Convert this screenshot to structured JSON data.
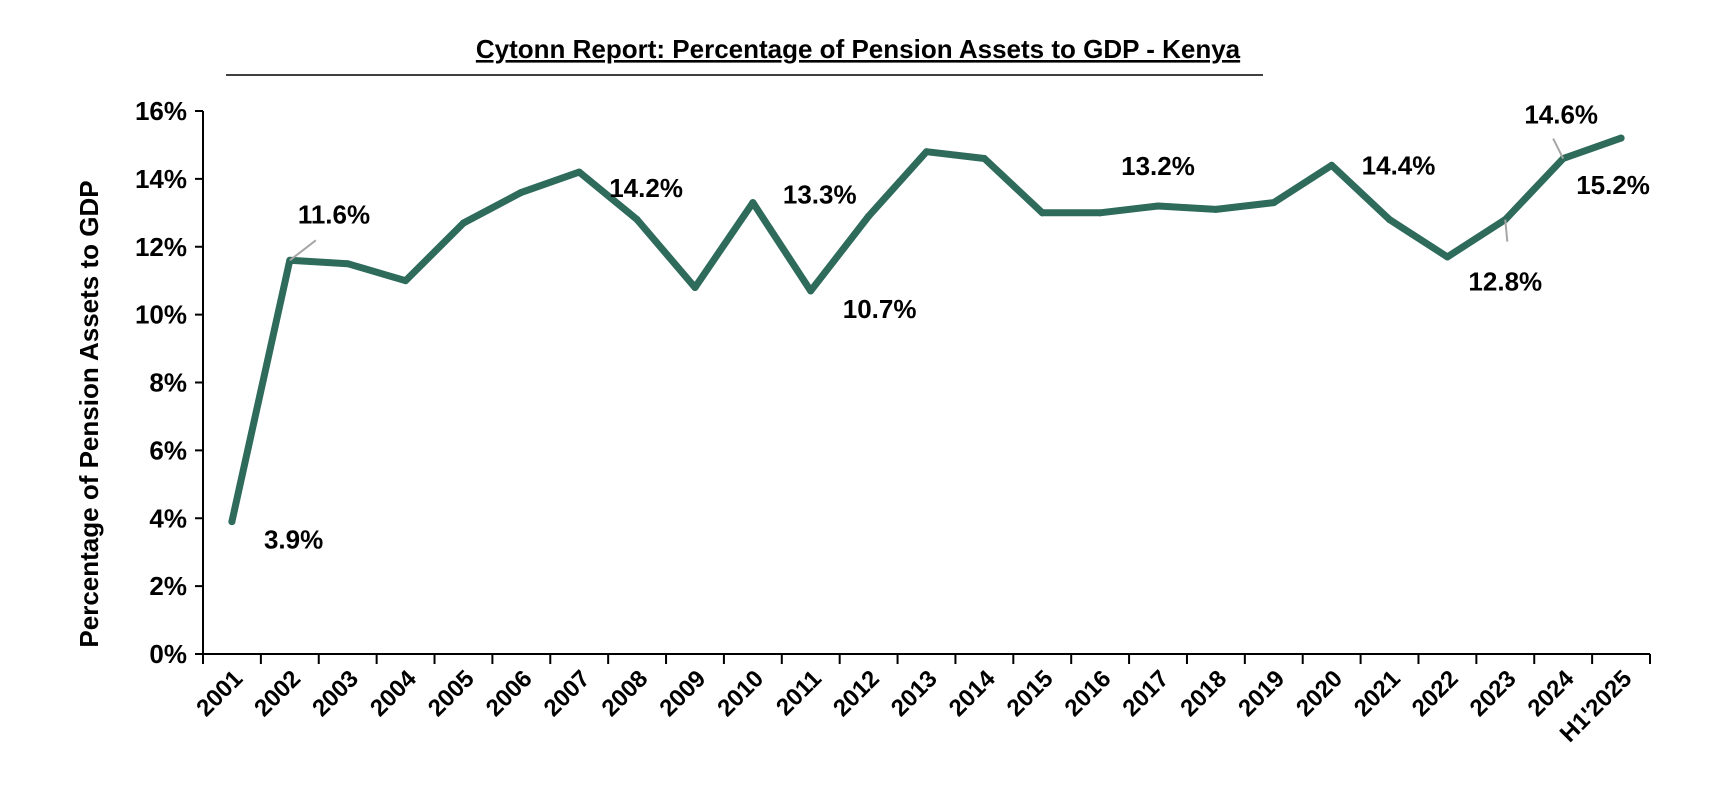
{
  "chart_data": {
    "type": "line",
    "title": "Cytonn Report: Percentage of Pension Assets to GDP - Kenya",
    "xlabel": "",
    "ylabel": "Percentage of Pension Assets to GDP",
    "ylim": [
      0,
      16
    ],
    "y_ticks": [
      "0%",
      "2%",
      "4%",
      "6%",
      "8%",
      "10%",
      "12%",
      "14%",
      "16%"
    ],
    "grid": false,
    "line_color": "#2e6b5a",
    "categories": [
      "2001",
      "2002",
      "2003",
      "2004",
      "2005",
      "2006",
      "2007",
      "2008",
      "2009",
      "2010",
      "2011",
      "2012",
      "2013",
      "2014",
      "2015",
      "2016",
      "2017",
      "2018",
      "2019",
      "2020",
      "2021",
      "2022",
      "2023",
      "2024",
      "H1'2025"
    ],
    "series": [
      {
        "name": "Percentage of Pension Assets to GDP",
        "values": [
          3.9,
          11.6,
          11.5,
          11.0,
          12.7,
          13.6,
          14.2,
          12.8,
          10.8,
          13.3,
          10.7,
          12.9,
          14.8,
          14.6,
          13.0,
          13.0,
          13.2,
          13.1,
          13.3,
          14.4,
          12.8,
          11.7,
          12.8,
          14.6,
          15.2
        ]
      }
    ],
    "data_labels": [
      {
        "index": 0,
        "text": "3.9%"
      },
      {
        "index": 1,
        "text": "11.6%"
      },
      {
        "index": 6,
        "text": "14.2%"
      },
      {
        "index": 9,
        "text": "13.3%"
      },
      {
        "index": 10,
        "text": "10.7%"
      },
      {
        "index": 16,
        "text": "13.2%"
      },
      {
        "index": 19,
        "text": "14.4%"
      },
      {
        "index": 22,
        "text": "12.8%"
      },
      {
        "index": 23,
        "text": "14.6%"
      },
      {
        "index": 24,
        "text": "15.2%"
      }
    ]
  }
}
